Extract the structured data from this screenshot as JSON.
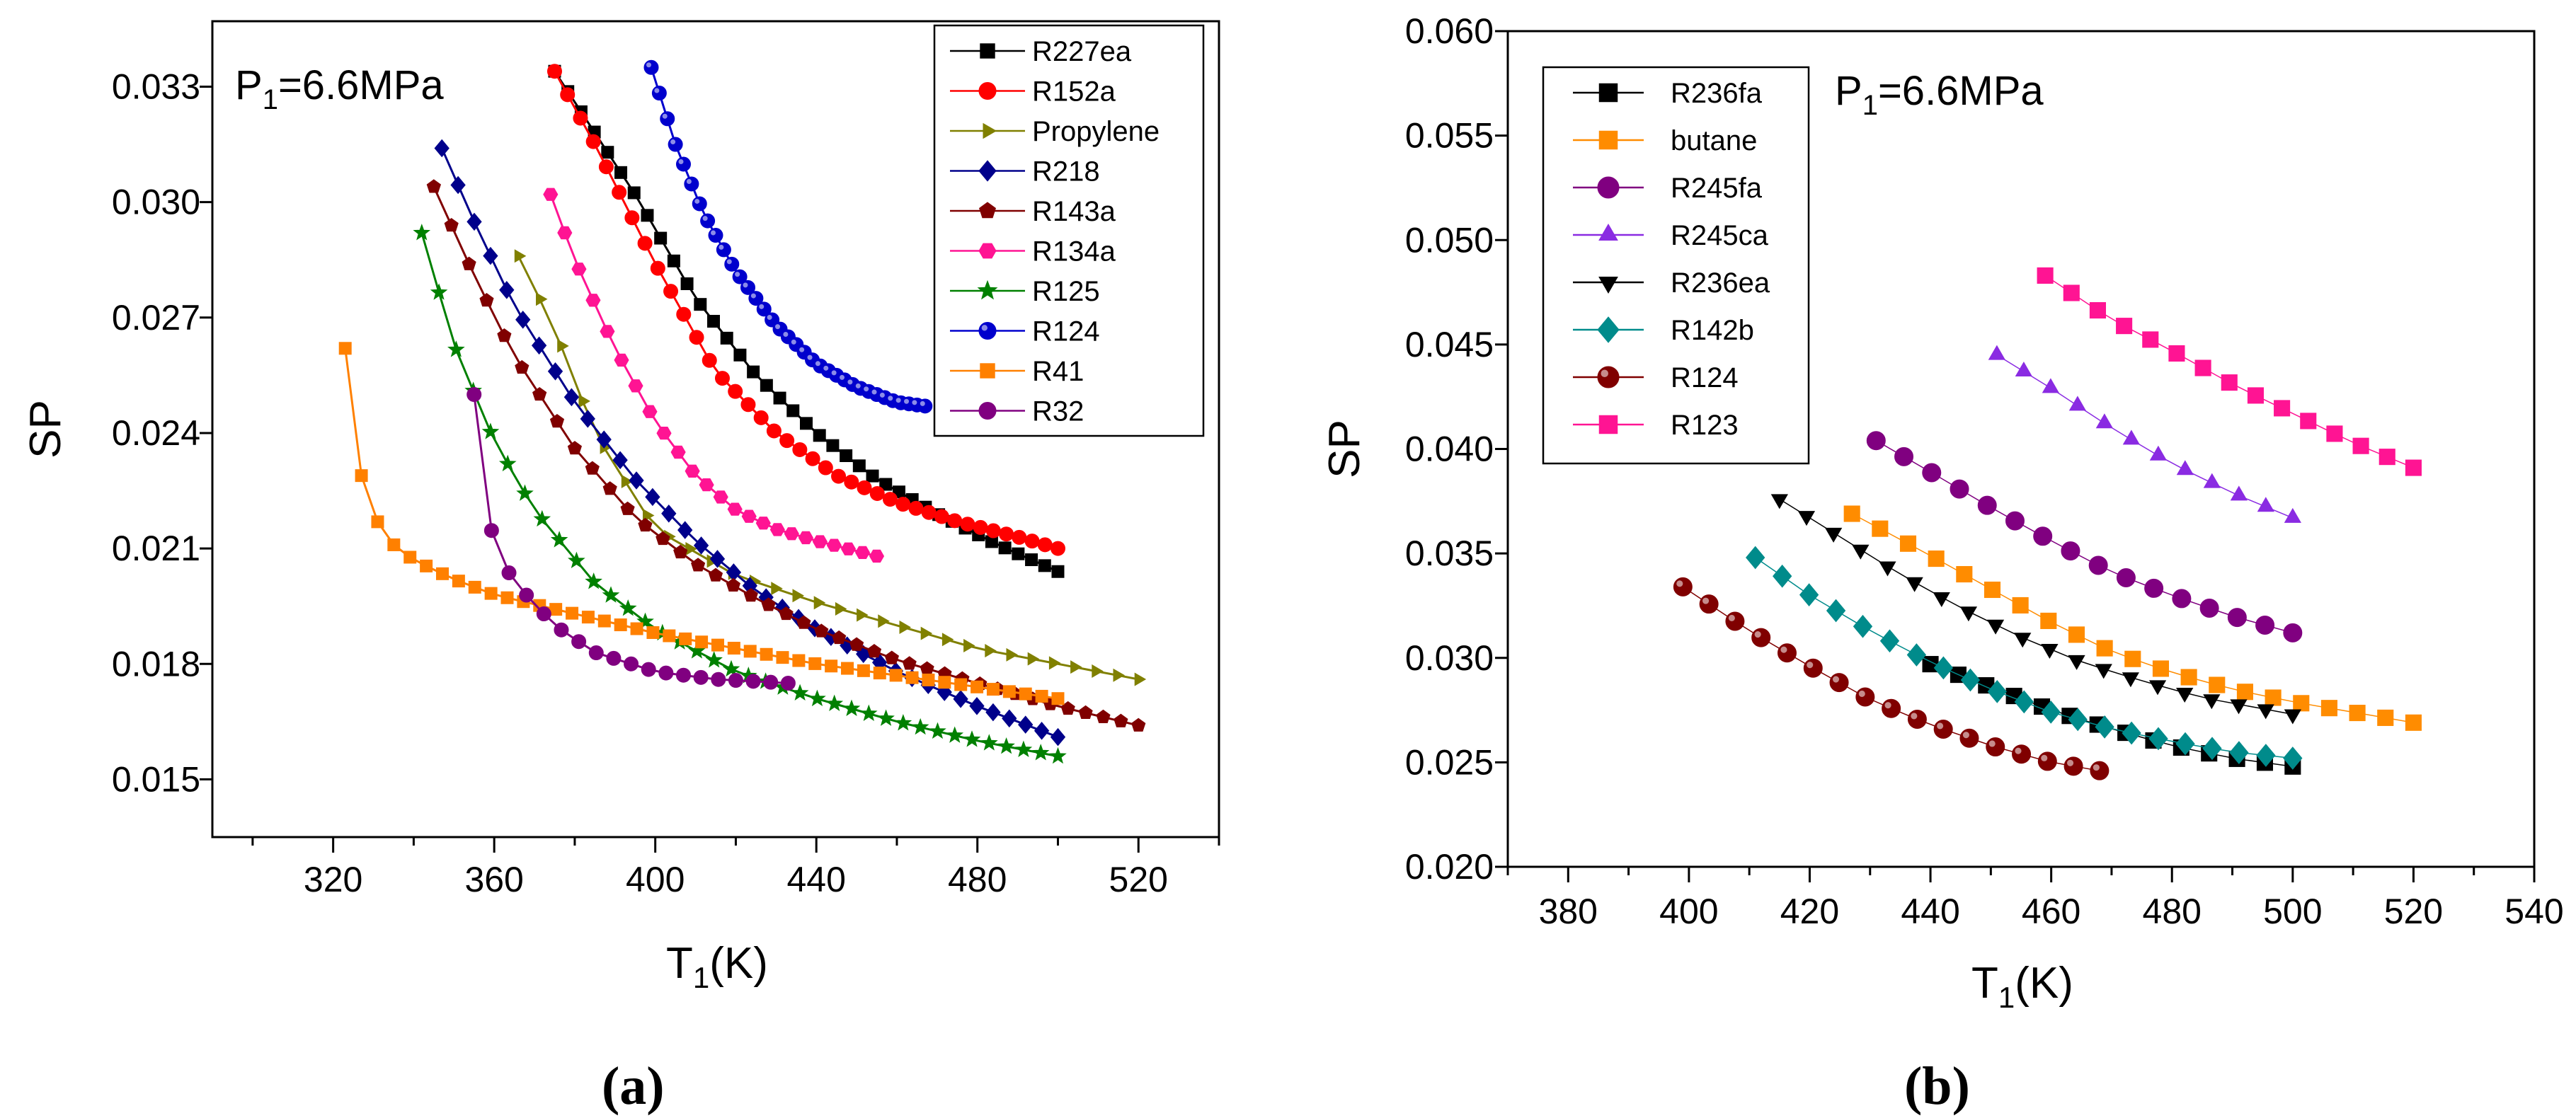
{
  "chart_data": [
    {
      "type": "line",
      "panel": "a",
      "panel_label": "(a)",
      "xlabel": "T",
      "xlabel_sub": "1",
      "xlabel_unit": "(K)",
      "ylabel": "SP",
      "xlim": [
        290,
        540
      ],
      "ylim": [
        0.0135,
        0.0347
      ],
      "xticks": [
        320,
        360,
        400,
        440,
        480,
        520
      ],
      "yticks": [
        0.015,
        0.018,
        0.021,
        0.024,
        0.027,
        0.03,
        0.033
      ],
      "ytick_labels": [
        "0.015",
        "0.018",
        "0.021",
        "0.024",
        "0.027",
        "0.030",
        "0.033"
      ],
      "annotation": {
        "prefix": "P",
        "sub": "1",
        "value": "=6.6MPa"
      },
      "legend_position": "top-right",
      "series": [
        {
          "name": "R227ea",
          "color": "#000000",
          "marker": "square",
          "x_start": 375,
          "x_end": 500,
          "points": 39,
          "x": [
            375,
            395,
            410,
            425,
            440,
            455,
            470,
            485,
            500
          ],
          "y": [
            0.0334,
            0.0302,
            0.0275,
            0.0255,
            0.024,
            0.0228,
            0.0219,
            0.0211,
            0.0204
          ]
        },
        {
          "name": "R152a",
          "color": "#ff0000",
          "marker": "circle",
          "x_start": 375,
          "x_end": 500,
          "points": 40,
          "x": [
            375,
            385,
            400,
            415,
            430,
            445,
            460,
            475,
            490,
            500
          ],
          "y": [
            0.0334,
            0.0315,
            0.0284,
            0.0256,
            0.024,
            0.0229,
            0.0222,
            0.0217,
            0.0213,
            0.021
          ]
        },
        {
          "name": "Propylene",
          "color": "#808000",
          "marker": "triangle-right",
          "x_start": 366,
          "x_end": 520,
          "points": 30,
          "x": [
            366,
            375,
            385,
            400,
            420,
            440,
            460,
            480,
            500,
            520
          ],
          "y": [
            0.0286,
            0.0267,
            0.024,
            0.0215,
            0.0203,
            0.0196,
            0.019,
            0.0184,
            0.018,
            0.0176
          ]
        },
        {
          "name": "R218",
          "color": "#00008b",
          "marker": "diamond",
          "x_start": 347,
          "x_end": 500,
          "points": 39,
          "x": [
            347,
            355,
            365,
            380,
            395,
            410,
            425,
            440,
            460,
            480,
            500
          ],
          "y": [
            0.0314,
            0.0295,
            0.0273,
            0.0248,
            0.0228,
            0.0212,
            0.0199,
            0.0189,
            0.0178,
            0.0169,
            0.0161
          ]
        },
        {
          "name": "R143a",
          "color": "#800000",
          "marker": "pentagon",
          "x_start": 345,
          "x_end": 520,
          "points": 41,
          "x": [
            345,
            355,
            365,
            380,
            395,
            410,
            425,
            440,
            460,
            480,
            500,
            520
          ],
          "y": [
            0.0304,
            0.0281,
            0.026,
            0.0236,
            0.0218,
            0.0206,
            0.0197,
            0.0189,
            0.0181,
            0.0175,
            0.0169,
            0.0164
          ]
        },
        {
          "name": "R134a",
          "color": "#ff1493",
          "marker": "hexagon",
          "x_start": 374,
          "x_end": 455,
          "points": 24,
          "x": [
            374,
            380,
            390,
            400,
            410,
            420,
            430,
            440,
            455
          ],
          "y": [
            0.0302,
            0.0285,
            0.0262,
            0.0243,
            0.0229,
            0.022,
            0.0215,
            0.0212,
            0.0208
          ]
        },
        {
          "name": "R125",
          "color": "#008000",
          "marker": "star",
          "x_start": 342,
          "x_end": 500,
          "points": 38,
          "x": [
            342,
            350,
            360,
            370,
            385,
            400,
            420,
            440,
            460,
            480,
            500
          ],
          "y": [
            0.0292,
            0.0263,
            0.0238,
            0.022,
            0.0201,
            0.0189,
            0.0178,
            0.0171,
            0.0165,
            0.016,
            0.0156
          ]
        },
        {
          "name": "R124",
          "color": "#0000cd",
          "marker": "sphere",
          "x_start": 399,
          "x_end": 467,
          "points": 35,
          "x": [
            399,
            405,
            412,
            420,
            430,
            440,
            450,
            460,
            467
          ],
          "y": [
            0.0335,
            0.0315,
            0.0297,
            0.0282,
            0.0268,
            0.0258,
            0.0252,
            0.0248,
            0.0247
          ]
        },
        {
          "name": "R41",
          "color": "#ff8000",
          "marker": "square",
          "x_start": 323,
          "x_end": 500,
          "points": 45,
          "x": [
            323,
            327,
            331,
            335,
            340,
            350,
            360,
            380,
            400,
            420,
            440,
            460,
            480,
            500
          ],
          "y": [
            0.0262,
            0.0229,
            0.0217,
            0.0211,
            0.0207,
            0.0202,
            0.0198,
            0.0193,
            0.0188,
            0.0184,
            0.018,
            0.0177,
            0.0174,
            0.0171
          ]
        },
        {
          "name": "R32",
          "color": "#800080",
          "marker": "circle",
          "x_start": 355,
          "x_end": 433,
          "points": 19,
          "x": [
            355,
            358,
            362,
            367,
            375,
            385,
            400,
            415,
            433
          ],
          "y": [
            0.025,
            0.0219,
            0.0206,
            0.0199,
            0.019,
            0.0183,
            0.0178,
            0.0176,
            0.0175
          ]
        }
      ]
    },
    {
      "type": "scatter",
      "panel": "b",
      "panel_label": "(b)",
      "xlabel": "T",
      "xlabel_sub": "1",
      "xlabel_unit": "(K)",
      "ylabel": "SP",
      "xlim": [
        370,
        540
      ],
      "ylim": [
        0.02,
        0.06
      ],
      "xticks": [
        380,
        400,
        420,
        440,
        460,
        480,
        500,
        520,
        540
      ],
      "yticks": [
        0.02,
        0.025,
        0.03,
        0.035,
        0.04,
        0.045,
        0.05,
        0.055,
        0.06
      ],
      "ytick_labels": [
        "0.020",
        "0.025",
        "0.030",
        "0.035",
        "0.040",
        "0.045",
        "0.050",
        "0.055",
        "0.060"
      ],
      "annotation": {
        "prefix": "P",
        "sub": "1",
        "value": "=6.6MPa"
      },
      "legend_position": "top-left",
      "series": [
        {
          "name": "R236fa",
          "color": "#000000",
          "marker": "square",
          "x_start": 440,
          "x_end": 500,
          "points": 14,
          "x": [
            440,
            450,
            460,
            470,
            480,
            490,
            500
          ],
          "y": [
            0.0297,
            0.0286,
            0.0275,
            0.0266,
            0.0258,
            0.0252,
            0.0248
          ]
        },
        {
          "name": "butane",
          "color": "#ff8c00",
          "marker": "square",
          "x_start": 427,
          "x_end": 520,
          "points": 21,
          "x": [
            427,
            440,
            450,
            460,
            470,
            480,
            490,
            500,
            510,
            520
          ],
          "y": [
            0.0369,
            0.0349,
            0.0333,
            0.0317,
            0.0303,
            0.0293,
            0.0285,
            0.0279,
            0.0274,
            0.0269
          ]
        },
        {
          "name": "R245fa",
          "color": "#800080",
          "marker": "circle",
          "x_start": 431,
          "x_end": 500,
          "points": 16,
          "x": [
            431,
            440,
            450,
            460,
            470,
            480,
            490,
            500
          ],
          "y": [
            0.0404,
            0.0389,
            0.0372,
            0.0356,
            0.0341,
            0.033,
            0.032,
            0.0312
          ]
        },
        {
          "name": "R245ca",
          "color": "#8a2be2",
          "marker": "triangle-up",
          "x_start": 451,
          "x_end": 500,
          "points": 12,
          "x": [
            451,
            460,
            470,
            480,
            490,
            500
          ],
          "y": [
            0.0445,
            0.0429,
            0.041,
            0.0393,
            0.0379,
            0.0367
          ]
        },
        {
          "name": "R236ea",
          "color": "#000000",
          "marker": "triangle-down",
          "x_start": 415,
          "x_end": 500,
          "points": 20,
          "x": [
            415,
            425,
            435,
            445,
            455,
            465,
            475,
            485,
            500
          ],
          "y": [
            0.0376,
            0.0358,
            0.034,
            0.0324,
            0.031,
            0.0298,
            0.0289,
            0.0281,
            0.0273
          ]
        },
        {
          "name": "R142b",
          "color": "#008b8b",
          "marker": "diamond",
          "x_start": 411,
          "x_end": 500,
          "points": 21,
          "x": [
            411,
            420,
            430,
            440,
            450,
            460,
            470,
            480,
            490,
            500
          ],
          "y": [
            0.0348,
            0.033,
            0.0313,
            0.0298,
            0.0285,
            0.0274,
            0.0266,
            0.026,
            0.0255,
            0.0252
          ]
        },
        {
          "name": "R124",
          "color": "#800000",
          "marker": "sphere",
          "x_start": 399,
          "x_end": 468,
          "points": 17,
          "x": [
            399,
            410,
            420,
            430,
            440,
            450,
            460,
            468
          ],
          "y": [
            0.0334,
            0.0313,
            0.0296,
            0.028,
            0.0268,
            0.0258,
            0.025,
            0.0246
          ]
        },
        {
          "name": "R123",
          "color": "#ff1493",
          "marker": "square",
          "x_start": 459,
          "x_end": 520,
          "points": 15,
          "x": [
            459,
            470,
            480,
            490,
            500,
            510,
            520
          ],
          "y": [
            0.0483,
            0.0462,
            0.0447,
            0.0431,
            0.0417,
            0.0403,
            0.0391
          ]
        }
      ]
    }
  ]
}
